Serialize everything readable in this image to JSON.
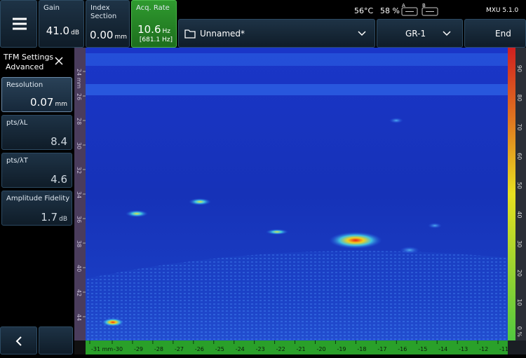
{
  "header": {
    "gain": {
      "label": "Gain",
      "value": "41.0",
      "unit": "dB"
    },
    "index_section": {
      "label": "Index Section",
      "value": "0.00",
      "unit": "mm"
    },
    "acq_rate": {
      "label": "Acq. Rate",
      "value": "10.6",
      "unit": "Hz",
      "sub": "[681.1 Hz]"
    },
    "temperature": "56°C",
    "battery": "58 %",
    "battery_a": "A",
    "battery_b": "B",
    "version": "MXU 5.1.0",
    "file": "Unnamed*",
    "group": "GR-1",
    "end": "End"
  },
  "panel": {
    "title": "TFM Settings",
    "subtitle": "Advanced",
    "items": [
      {
        "label": "Resolution",
        "value": "0.07",
        "unit": "mm"
      },
      {
        "label": "pts/λL",
        "value": "8.4"
      },
      {
        "label": "pts/λT",
        "value": "4.6"
      },
      {
        "label": "Amplitude Fidelity",
        "value": "1.7",
        "unit": "dB"
      }
    ]
  },
  "scan": {
    "depth_ticks": [
      "24 mm",
      "26",
      "28",
      "30",
      "32",
      "34",
      "36",
      "38",
      "40",
      "42",
      "44"
    ],
    "index_ticks": [
      "-31 mm",
      "-30",
      "-29",
      "-28",
      "-27",
      "-26",
      "-25",
      "-24",
      "-23",
      "-22",
      "-21",
      "-20",
      "-19",
      "-18",
      "-17",
      "-16",
      "-15",
      "-14",
      "-13",
      "-12",
      "-11"
    ],
    "amplitude_ticks": [
      "90",
      "80",
      "70",
      "60",
      "50",
      "40",
      "30",
      "20",
      "10",
      "0 %"
    ]
  }
}
